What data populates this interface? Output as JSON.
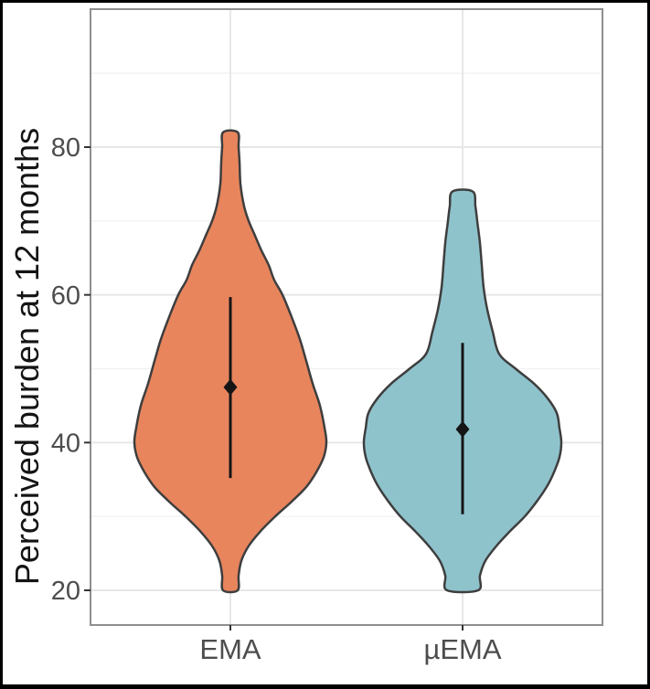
{
  "figure": {
    "background": "#ffffff",
    "frame_color": "#000000"
  },
  "chart_data": {
    "type": "violin",
    "ylabel": "Perceived burden at 12 months",
    "xlabel": "",
    "categories": [
      "EMA",
      "µEMA"
    ],
    "yticks": [
      "20",
      "40",
      "60",
      "80"
    ],
    "ytick_values": [
      20,
      40,
      60,
      80
    ],
    "yminor_values": [
      30,
      50,
      70,
      90
    ],
    "ylim": [
      15.2,
      98.8
    ],
    "grid": {
      "panel_background": "#ffffff",
      "panel_border": "#8f8f8f",
      "major_color": "#e7e7e7",
      "minor_color": "#f3f3f3",
      "tick_color": "#333333"
    },
    "axis_text_color": "#4d4d4d",
    "axis_title_color": "#141414",
    "marker": {
      "shape": "diamond",
      "color": "#151515"
    },
    "series": [
      {
        "name": "EMA",
        "fill": "#E8855D",
        "stroke": "#3e3e3e",
        "min": 20,
        "max": 82,
        "mean": 47.5,
        "ci_low": 35.2,
        "ci_high": 59.7,
        "density_profile": [
          [
            82,
            0.074
          ],
          [
            80,
            0.083
          ],
          [
            78,
            0.093
          ],
          [
            75,
            0.102
          ],
          [
            72,
            0.139
          ],
          [
            70,
            0.185
          ],
          [
            68,
            0.25
          ],
          [
            66,
            0.315
          ],
          [
            64,
            0.389
          ],
          [
            62,
            0.444
          ],
          [
            60,
            0.528
          ],
          [
            57,
            0.62
          ],
          [
            54,
            0.704
          ],
          [
            51,
            0.769
          ],
          [
            48,
            0.833
          ],
          [
            45,
            0.907
          ],
          [
            42,
            0.954
          ],
          [
            40,
            0.972
          ],
          [
            38,
            0.944
          ],
          [
            36,
            0.87
          ],
          [
            34,
            0.769
          ],
          [
            32,
            0.62
          ],
          [
            30,
            0.454
          ],
          [
            28,
            0.306
          ],
          [
            26,
            0.185
          ],
          [
            24,
            0.111
          ],
          [
            22,
            0.083
          ],
          [
            20,
            0.074
          ]
        ]
      },
      {
        "name": "µEMA",
        "fill": "#8FC3CC",
        "stroke": "#3e3e3e",
        "min": 20,
        "max": 74,
        "mean": 41.8,
        "ci_low": 30.3,
        "ci_high": 53.5,
        "density_profile": [
          [
            74,
            0.102
          ],
          [
            72,
            0.13
          ],
          [
            70,
            0.148
          ],
          [
            67,
            0.176
          ],
          [
            64,
            0.194
          ],
          [
            61,
            0.213
          ],
          [
            58,
            0.25
          ],
          [
            55,
            0.306
          ],
          [
            52,
            0.37
          ],
          [
            50,
            0.537
          ],
          [
            48,
            0.722
          ],
          [
            46,
            0.861
          ],
          [
            44,
            0.954
          ],
          [
            42,
            0.981
          ],
          [
            40,
            1.0
          ],
          [
            38,
            0.981
          ],
          [
            36,
            0.926
          ],
          [
            34,
            0.852
          ],
          [
            32,
            0.75
          ],
          [
            30,
            0.63
          ],
          [
            28,
            0.481
          ],
          [
            26,
            0.343
          ],
          [
            24,
            0.231
          ],
          [
            22,
            0.176
          ],
          [
            20,
            0.157
          ]
        ]
      }
    ]
  }
}
